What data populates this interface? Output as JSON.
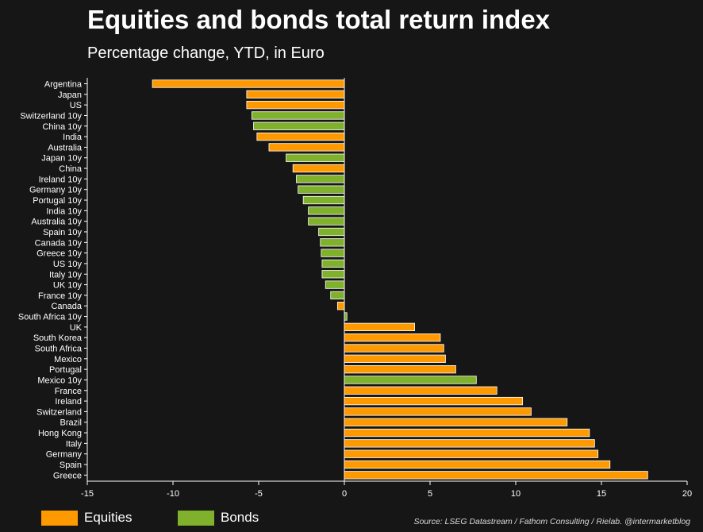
{
  "chart_data": {
    "type": "bar",
    "orientation": "horizontal",
    "title": "Equities and bonds total return index",
    "subtitle": "Percentage change, YTD, in Euro",
    "xlabel": "",
    "ylabel": "",
    "xlim": [
      -15,
      20
    ],
    "xticks": [
      -15,
      -10,
      -5,
      0,
      5,
      10,
      15,
      20
    ],
    "grid": false,
    "legend_position": "bottom-left",
    "source": "Source: LSEG Datastream / Fathom Consulting / Rielab. @intermarketblog",
    "colors": {
      "Equities": "#ff9900",
      "Bonds": "#7fb12c"
    },
    "series": [
      {
        "name": "Equities"
      },
      {
        "name": "Bonds"
      }
    ],
    "bars": [
      {
        "label": "Argentina",
        "value": -11.2,
        "group": "Equities"
      },
      {
        "label": "Japan",
        "value": -5.7,
        "group": "Equities"
      },
      {
        "label": "US",
        "value": -5.7,
        "group": "Equities"
      },
      {
        "label": "Switzerland 10y",
        "value": -5.4,
        "group": "Bonds"
      },
      {
        "label": "China 10y",
        "value": -5.3,
        "group": "Bonds"
      },
      {
        "label": "India",
        "value": -5.1,
        "group": "Equities"
      },
      {
        "label": "Australia",
        "value": -4.4,
        "group": "Equities"
      },
      {
        "label": "Japan 10y",
        "value": -3.4,
        "group": "Bonds"
      },
      {
        "label": "China",
        "value": -3.0,
        "group": "Equities"
      },
      {
        "label": "Ireland 10y",
        "value": -2.8,
        "group": "Bonds"
      },
      {
        "label": "Germany 10y",
        "value": -2.7,
        "group": "Bonds"
      },
      {
        "label": "Portugal 10y",
        "value": -2.4,
        "group": "Bonds"
      },
      {
        "label": "India 10y",
        "value": -2.1,
        "group": "Bonds"
      },
      {
        "label": "Australia 10y",
        "value": -2.1,
        "group": "Bonds"
      },
      {
        "label": "Spain 10y",
        "value": -1.5,
        "group": "Bonds"
      },
      {
        "label": "Canada 10y",
        "value": -1.4,
        "group": "Bonds"
      },
      {
        "label": "Greece 10y",
        "value": -1.35,
        "group": "Bonds"
      },
      {
        "label": "US 10y",
        "value": -1.3,
        "group": "Bonds"
      },
      {
        "label": "Italy 10y",
        "value": -1.3,
        "group": "Bonds"
      },
      {
        "label": "UK 10y",
        "value": -1.1,
        "group": "Bonds"
      },
      {
        "label": "France 10y",
        "value": -0.8,
        "group": "Bonds"
      },
      {
        "label": "Canada",
        "value": -0.4,
        "group": "Equities"
      },
      {
        "label": "South Africa 10y",
        "value": 0.15,
        "group": "Bonds"
      },
      {
        "label": "UK",
        "value": 4.1,
        "group": "Equities"
      },
      {
        "label": "South Korea",
        "value": 5.6,
        "group": "Equities"
      },
      {
        "label": "South Africa",
        "value": 5.8,
        "group": "Equities"
      },
      {
        "label": "Mexico",
        "value": 5.9,
        "group": "Equities"
      },
      {
        "label": "Portugal",
        "value": 6.5,
        "group": "Equities"
      },
      {
        "label": "Mexico 10y",
        "value": 7.7,
        "group": "Bonds"
      },
      {
        "label": "France",
        "value": 8.9,
        "group": "Equities"
      },
      {
        "label": "Ireland",
        "value": 10.4,
        "group": "Equities"
      },
      {
        "label": "Switzerland",
        "value": 10.9,
        "group": "Equities"
      },
      {
        "label": "Brazil",
        "value": 13.0,
        "group": "Equities"
      },
      {
        "label": "Hong Kong",
        "value": 14.3,
        "group": "Equities"
      },
      {
        "label": "Italy",
        "value": 14.6,
        "group": "Equities"
      },
      {
        "label": "Germany",
        "value": 14.8,
        "group": "Equities"
      },
      {
        "label": "Spain",
        "value": 15.5,
        "group": "Equities"
      },
      {
        "label": "Greece",
        "value": 17.7,
        "group": "Equities"
      }
    ]
  }
}
